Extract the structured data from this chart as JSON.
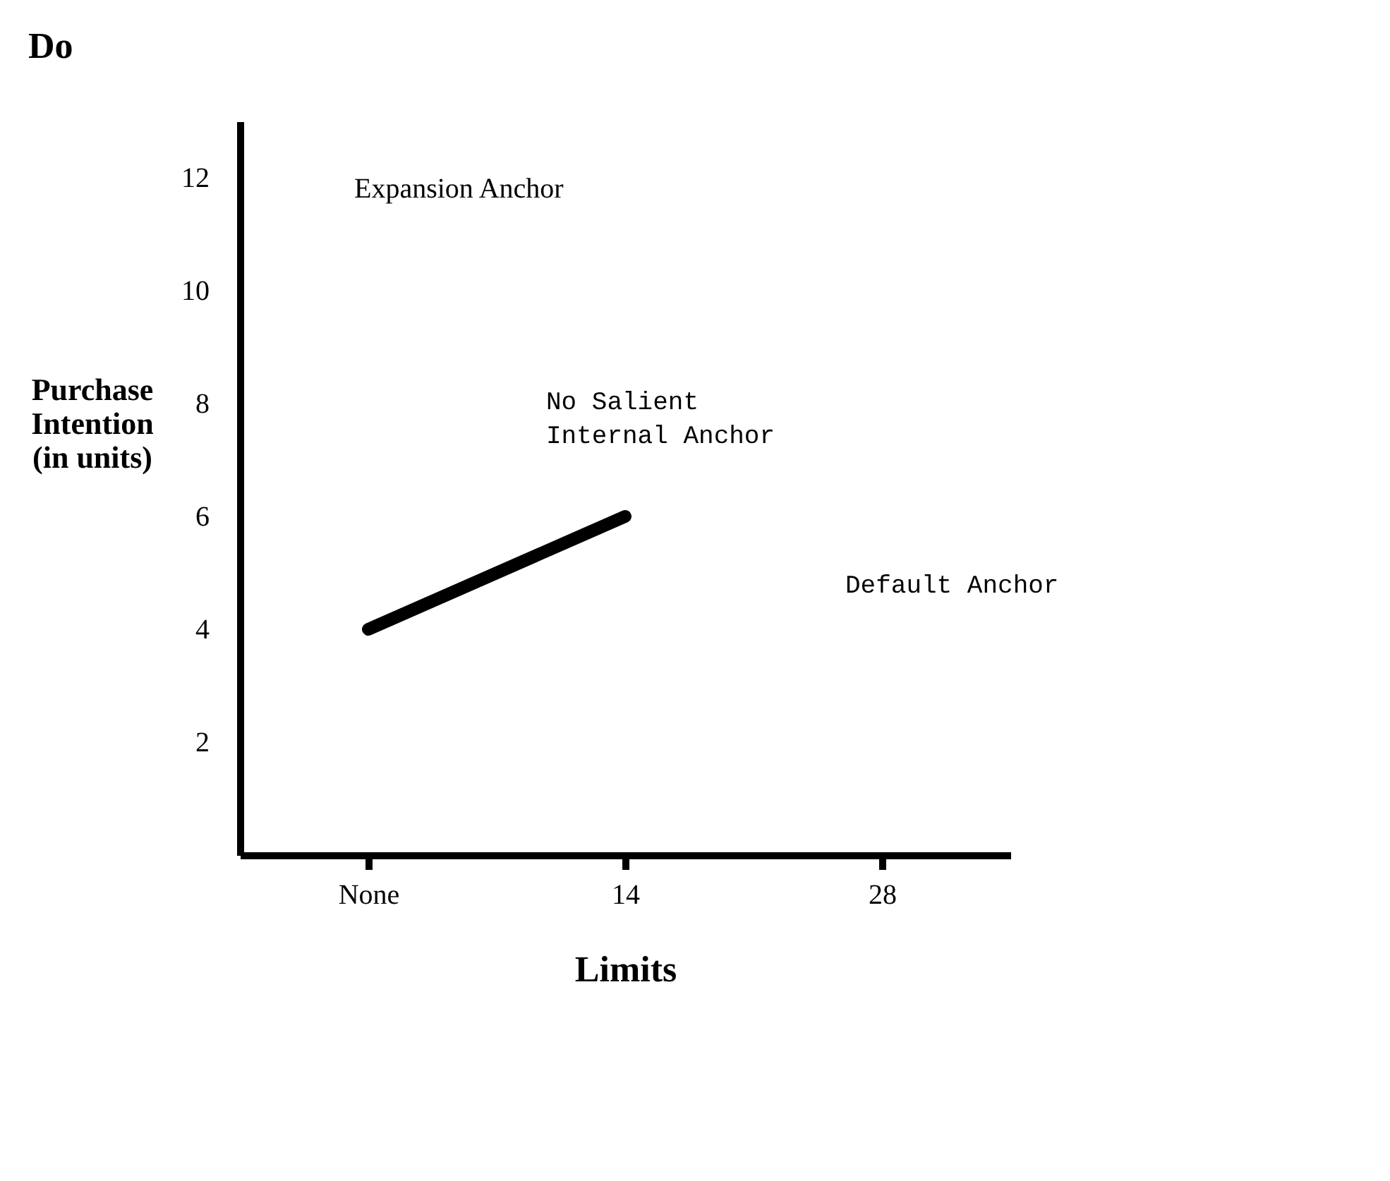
{
  "chart_data": {
    "type": "line",
    "title": "Do",
    "xlabel": "Limits",
    "ylabel": "Purchase Intention (in units)",
    "categories": [
      "None",
      "14",
      "28"
    ],
    "series": [
      {
        "color": "#000000",
        "values": [
          4,
          6,
          null
        ]
      }
    ],
    "ylim": [
      0,
      13
    ],
    "yticks": [
      2,
      4,
      6,
      8,
      10,
      12
    ],
    "grid": false,
    "line_style": "solid",
    "annotations": [
      "Expansion Anchor",
      "No Salient Internal Anchor",
      "Default Anchor"
    ]
  }
}
